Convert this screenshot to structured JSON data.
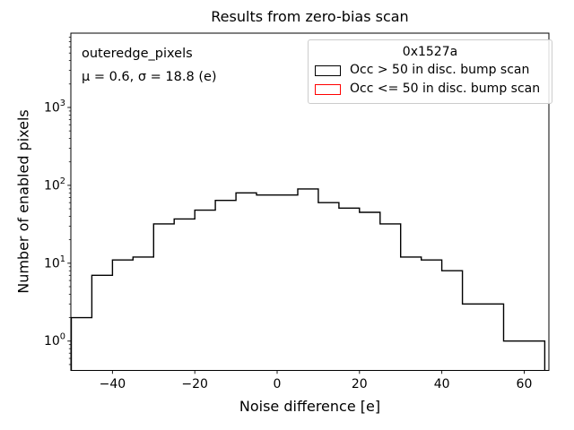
{
  "figure": {
    "title": "Results from zero-bias scan",
    "background": "#ffffff"
  },
  "axes": {
    "xlabel": "Noise difference [e]",
    "ylabel": "Number of enabled pixels",
    "x_ticks": [
      -40,
      -20,
      0,
      20,
      40,
      60
    ],
    "y_tick_exponents": [
      0,
      1,
      2,
      3
    ],
    "yscale": "log"
  },
  "annotations": {
    "dataset": "outeredge_pixels",
    "stats": "μ = 0.6, σ = 18.8 (e)",
    "mu": 0.6,
    "sigma": 18.8
  },
  "legend": {
    "title": "0x1527a",
    "entries": [
      {
        "label": "Occ > 50 in disc. bump scan",
        "color": "#000000"
      },
      {
        "label": "Occ <= 50 in disc. bump scan",
        "color": "#ff0000"
      }
    ]
  },
  "chart_data": {
    "type": "bar",
    "subtype": "step-histogram",
    "title": "Results from zero-bias scan",
    "xlabel": "Noise difference [e]",
    "ylabel": "Number of enabled pixels",
    "yscale": "log",
    "grid": false,
    "legend_position": "upper right",
    "legend_title": "0x1527a",
    "xlim": [
      -50.1,
      66.0
    ],
    "ylim": [
      0.42,
      9000
    ],
    "x_ticks": [
      -40,
      -20,
      0,
      20,
      40,
      60
    ],
    "y_tick_exponents": [
      0,
      1,
      2,
      3
    ],
    "bin_edges": [
      -50,
      -45,
      -40,
      -35,
      -30,
      -25,
      -20,
      -15,
      -10,
      -5,
      0,
      5,
      10,
      15,
      20,
      25,
      30,
      35,
      40,
      45,
      50,
      55,
      60,
      65
    ],
    "series": [
      {
        "name": "Occ > 50 in disc. bump scan",
        "color": "#000000",
        "counts": [
          2,
          7,
          11,
          12,
          32,
          37,
          48,
          64,
          80,
          75,
          75,
          90,
          60,
          51,
          45,
          32,
          12,
          11,
          8,
          3,
          3,
          1,
          1
        ]
      },
      {
        "name": "Occ <= 50 in disc. bump scan",
        "color": "#ff0000",
        "counts": [
          0,
          0,
          0,
          0,
          0,
          0,
          0,
          0,
          0,
          0,
          0,
          0,
          0,
          0,
          0,
          0,
          0,
          0,
          0,
          0,
          0,
          0,
          0
        ]
      }
    ]
  }
}
